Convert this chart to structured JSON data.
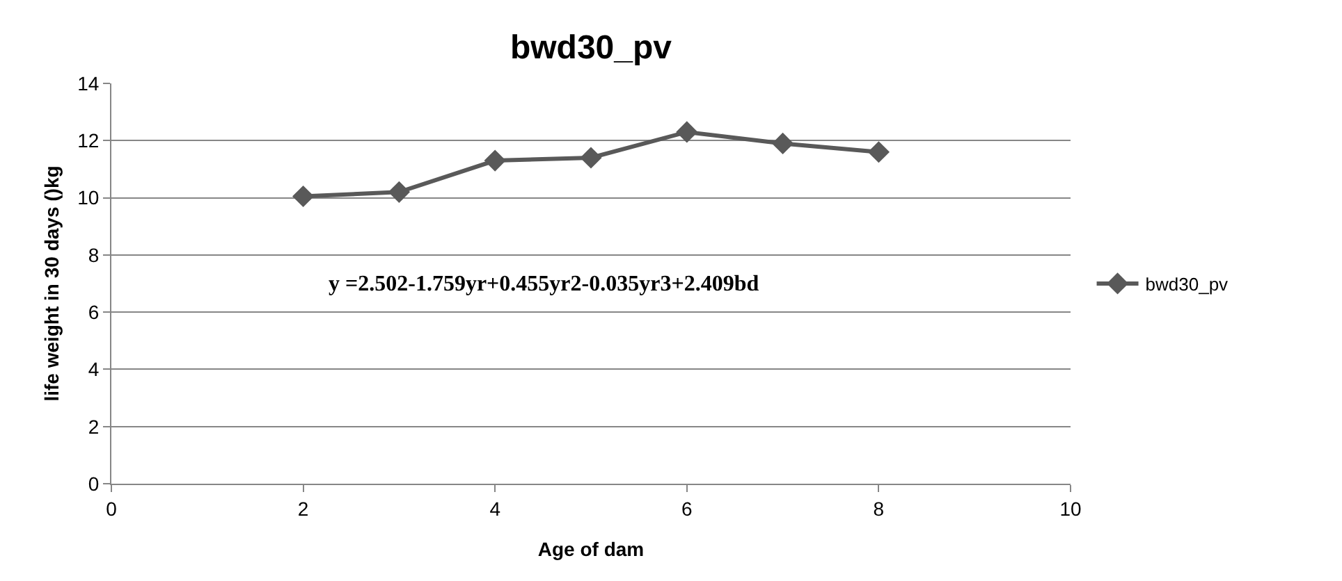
{
  "chart_data": {
    "type": "line",
    "title": "bwd30_pv",
    "xlabel": "Age of dam",
    "ylabel": "life weight in 30 days ()kg",
    "x": [
      2,
      3,
      4,
      5,
      6,
      7,
      8
    ],
    "series": [
      {
        "name": "bwd30_pv",
        "color": "#595959",
        "values": [
          10.05,
          10.2,
          11.3,
          11.4,
          12.3,
          11.9,
          11.6
        ]
      }
    ],
    "xlim": [
      0,
      10
    ],
    "xticks": [
      0,
      2,
      4,
      6,
      8,
      10
    ],
    "ylim": [
      0,
      14
    ],
    "yticks": [
      0,
      2,
      4,
      6,
      8,
      10,
      12,
      14
    ],
    "grid": "y",
    "legend": "right",
    "marker": "diamond",
    "line_style": "solid",
    "annotations": [
      "y =2.502-1.759yr+0.455yr2-0.035yr3+2.409bd"
    ]
  }
}
